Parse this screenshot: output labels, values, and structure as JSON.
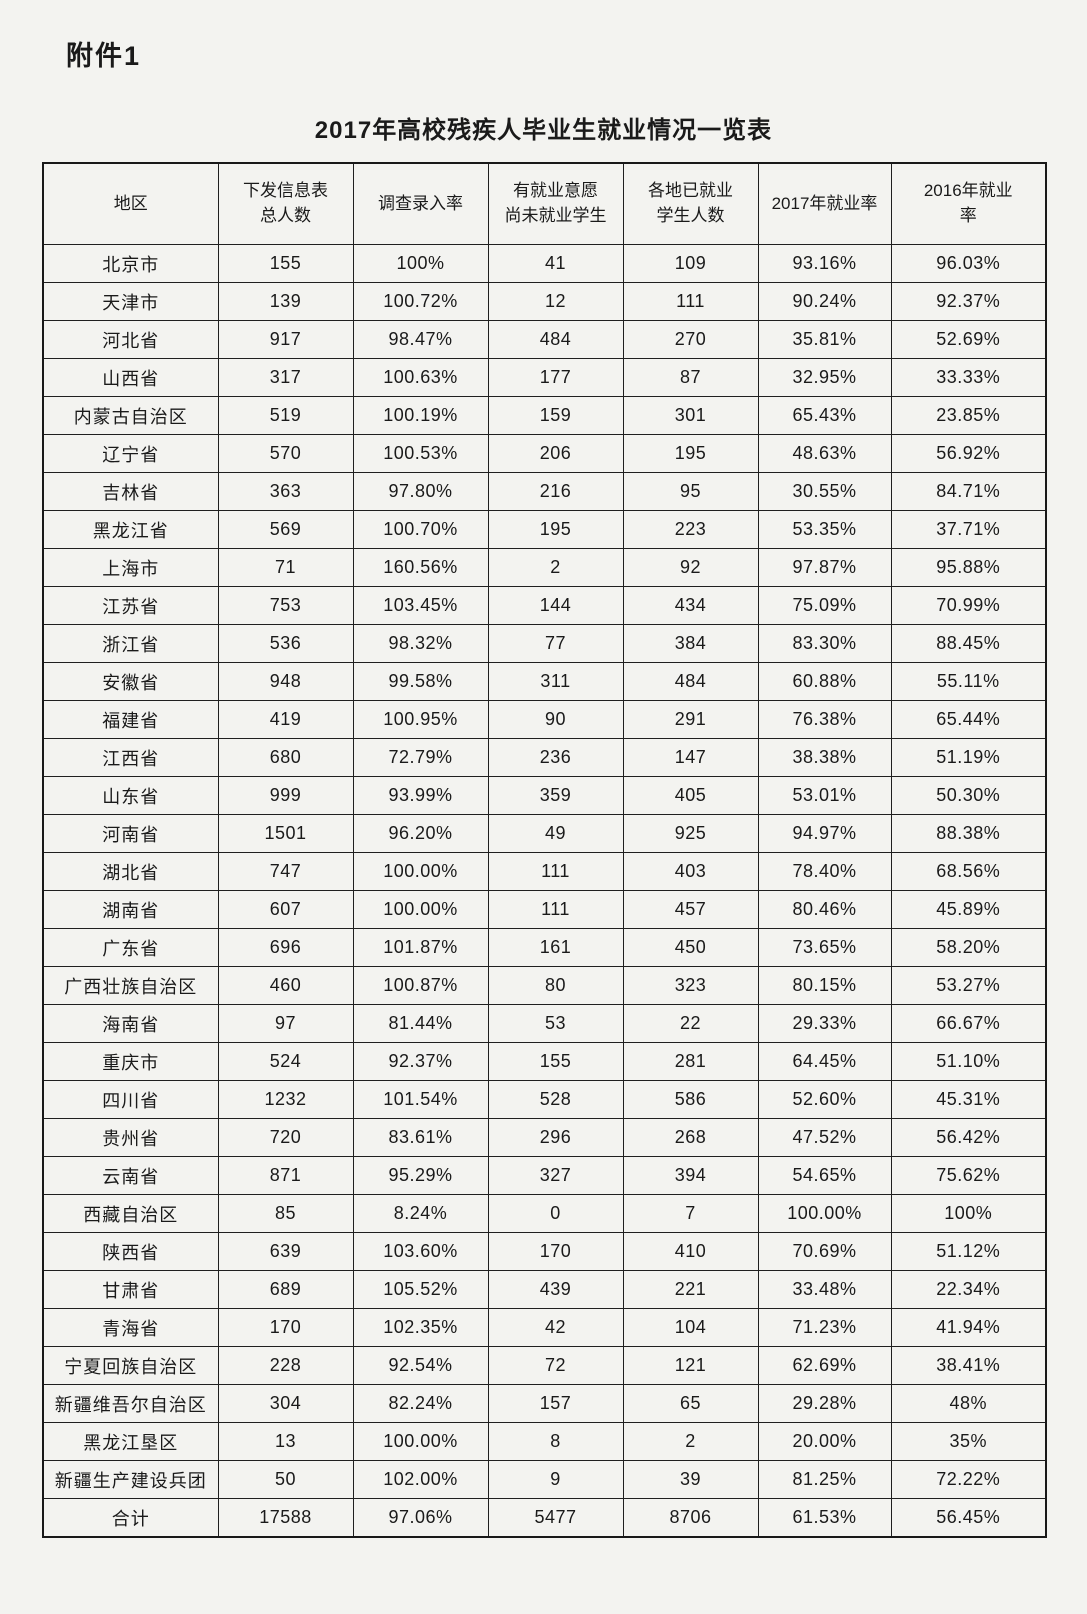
{
  "page": {
    "attachment_label": "附件1",
    "title": "2017年高校残疾人毕业生就业情况一览表"
  },
  "table": {
    "headers": [
      "地区",
      "下发信息表\n总人数",
      "调查录入率",
      "有就业意愿\n尚未就业学生",
      "各地已就业\n学生人数",
      "2017年就业率",
      "2016年就业\n率"
    ],
    "rows": [
      [
        "北京市",
        "155",
        "100%",
        "41",
        "109",
        "93.16%",
        "96.03%"
      ],
      [
        "天津市",
        "139",
        "100.72%",
        "12",
        "111",
        "90.24%",
        "92.37%"
      ],
      [
        "河北省",
        "917",
        "98.47%",
        "484",
        "270",
        "35.81%",
        "52.69%"
      ],
      [
        "山西省",
        "317",
        "100.63%",
        "177",
        "87",
        "32.95%",
        "33.33%"
      ],
      [
        "内蒙古自治区",
        "519",
        "100.19%",
        "159",
        "301",
        "65.43%",
        "23.85%"
      ],
      [
        "辽宁省",
        "570",
        "100.53%",
        "206",
        "195",
        "48.63%",
        "56.92%"
      ],
      [
        "吉林省",
        "363",
        "97.80%",
        "216",
        "95",
        "30.55%",
        "84.71%"
      ],
      [
        "黑龙江省",
        "569",
        "100.70%",
        "195",
        "223",
        "53.35%",
        "37.71%"
      ],
      [
        "上海市",
        "71",
        "160.56%",
        "2",
        "92",
        "97.87%",
        "95.88%"
      ],
      [
        "江苏省",
        "753",
        "103.45%",
        "144",
        "434",
        "75.09%",
        "70.99%"
      ],
      [
        "浙江省",
        "536",
        "98.32%",
        "77",
        "384",
        "83.30%",
        "88.45%"
      ],
      [
        "安徽省",
        "948",
        "99.58%",
        "311",
        "484",
        "60.88%",
        "55.11%"
      ],
      [
        "福建省",
        "419",
        "100.95%",
        "90",
        "291",
        "76.38%",
        "65.44%"
      ],
      [
        "江西省",
        "680",
        "72.79%",
        "236",
        "147",
        "38.38%",
        "51.19%"
      ],
      [
        "山东省",
        "999",
        "93.99%",
        "359",
        "405",
        "53.01%",
        "50.30%"
      ],
      [
        "河南省",
        "1501",
        "96.20%",
        "49",
        "925",
        "94.97%",
        "88.38%"
      ],
      [
        "湖北省",
        "747",
        "100.00%",
        "111",
        "403",
        "78.40%",
        "68.56%"
      ],
      [
        "湖南省",
        "607",
        "100.00%",
        "111",
        "457",
        "80.46%",
        "45.89%"
      ],
      [
        "广东省",
        "696",
        "101.87%",
        "161",
        "450",
        "73.65%",
        "58.20%"
      ],
      [
        "广西壮族自治区",
        "460",
        "100.87%",
        "80",
        "323",
        "80.15%",
        "53.27%"
      ],
      [
        "海南省",
        "97",
        "81.44%",
        "53",
        "22",
        "29.33%",
        "66.67%"
      ],
      [
        "重庆市",
        "524",
        "92.37%",
        "155",
        "281",
        "64.45%",
        "51.10%"
      ],
      [
        "四川省",
        "1232",
        "101.54%",
        "528",
        "586",
        "52.60%",
        "45.31%"
      ],
      [
        "贵州省",
        "720",
        "83.61%",
        "296",
        "268",
        "47.52%",
        "56.42%"
      ],
      [
        "云南省",
        "871",
        "95.29%",
        "327",
        "394",
        "54.65%",
        "75.62%"
      ],
      [
        "西藏自治区",
        "85",
        "8.24%",
        "0",
        "7",
        "100.00%",
        "100%"
      ],
      [
        "陕西省",
        "639",
        "103.60%",
        "170",
        "410",
        "70.69%",
        "51.12%"
      ],
      [
        "甘肃省",
        "689",
        "105.52%",
        "439",
        "221",
        "33.48%",
        "22.34%"
      ],
      [
        "青海省",
        "170",
        "102.35%",
        "42",
        "104",
        "71.23%",
        "41.94%"
      ],
      [
        "宁夏回族自治区",
        "228",
        "92.54%",
        "72",
        "121",
        "62.69%",
        "38.41%"
      ],
      [
        "新疆维吾尔自治区",
        "304",
        "82.24%",
        "157",
        "65",
        "29.28%",
        "48%"
      ],
      [
        "黑龙江垦区",
        "13",
        "100.00%",
        "8",
        "2",
        "20.00%",
        "35%"
      ],
      [
        "新疆生产建设兵团",
        "50",
        "102.00%",
        "9",
        "39",
        "81.25%",
        "72.22%"
      ],
      [
        "合计",
        "17588",
        "97.06%",
        "5477",
        "8706",
        "61.53%",
        "56.45%"
      ]
    ]
  }
}
